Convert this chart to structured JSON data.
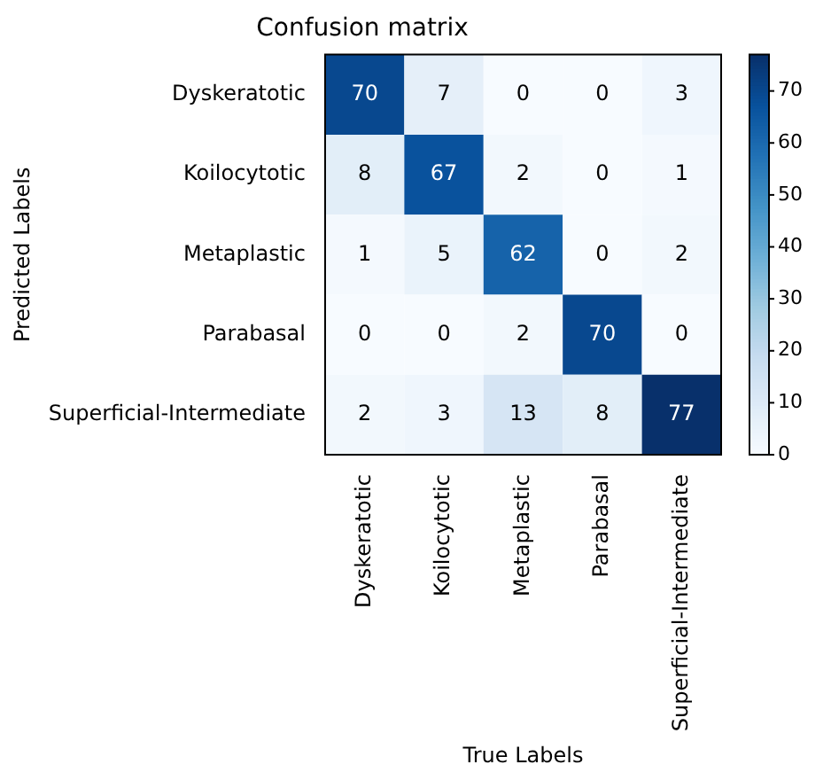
{
  "chart_data": {
    "type": "heatmap",
    "title": "Confusion matrix",
    "xlabel": "True Labels",
    "ylabel": "Predicted Labels",
    "categories": [
      "Dyskeratotic",
      "Koilocytotic",
      "Metaplastic",
      "Parabasal",
      "Superficial-Intermediate"
    ],
    "y_categories": [
      "Dyskeratotic",
      "Koilocytotic",
      "Metaplastic",
      "Parabasal",
      "Superficial-Intermediate"
    ],
    "cells": [
      [
        70,
        7,
        0,
        0,
        3
      ],
      [
        8,
        67,
        2,
        0,
        1
      ],
      [
        1,
        5,
        62,
        0,
        2
      ],
      [
        0,
        0,
        2,
        70,
        0
      ],
      [
        2,
        3,
        13,
        8,
        77
      ]
    ],
    "clim": [
      0,
      77
    ],
    "cticks": [
      0,
      10,
      20,
      30,
      40,
      50,
      60,
      70
    ],
    "data_labels": true
  }
}
